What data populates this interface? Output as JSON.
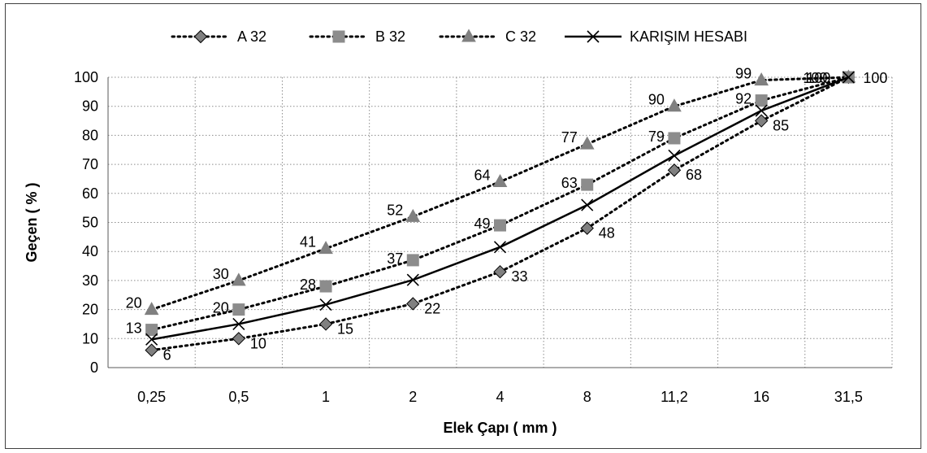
{
  "chart_data": {
    "type": "line",
    "title": "",
    "xlabel": "Elek Çapı ( mm )",
    "ylabel": "Geçen ( % )",
    "categories": [
      "0,25",
      "0,5",
      "1",
      "2",
      "4",
      "8",
      "11,2",
      "16",
      "31,5"
    ],
    "ylim": [
      0,
      100
    ],
    "yticks": [
      0,
      10,
      20,
      30,
      40,
      50,
      60,
      70,
      80,
      90,
      100
    ],
    "grid": "horizontal-dotted",
    "legend_position": "top",
    "series": [
      {
        "name": "A 32",
        "values": [
          6,
          10,
          15,
          22,
          33,
          48,
          68,
          85,
          100
        ],
        "color": "#808080",
        "marker": "diamond",
        "line": "dotted",
        "labels": true
      },
      {
        "name": "B 32",
        "values": [
          13,
          20,
          28,
          37,
          49,
          63,
          79,
          92,
          100
        ],
        "color": "#808080",
        "marker": "square",
        "line": "dotted",
        "labels": true
      },
      {
        "name": "C 32",
        "values": [
          20,
          30,
          41,
          52,
          64,
          77,
          90,
          99,
          100
        ],
        "color": "#808080",
        "marker": "triangle",
        "line": "dotted",
        "labels": true
      },
      {
        "name": "KARIŞIM HESABI",
        "values": [
          9.7,
          15,
          21.7,
          30.2,
          41.5,
          56,
          73,
          88.5,
          100
        ],
        "color": "#000000",
        "marker": "x",
        "line": "solid",
        "labels": false
      }
    ]
  }
}
